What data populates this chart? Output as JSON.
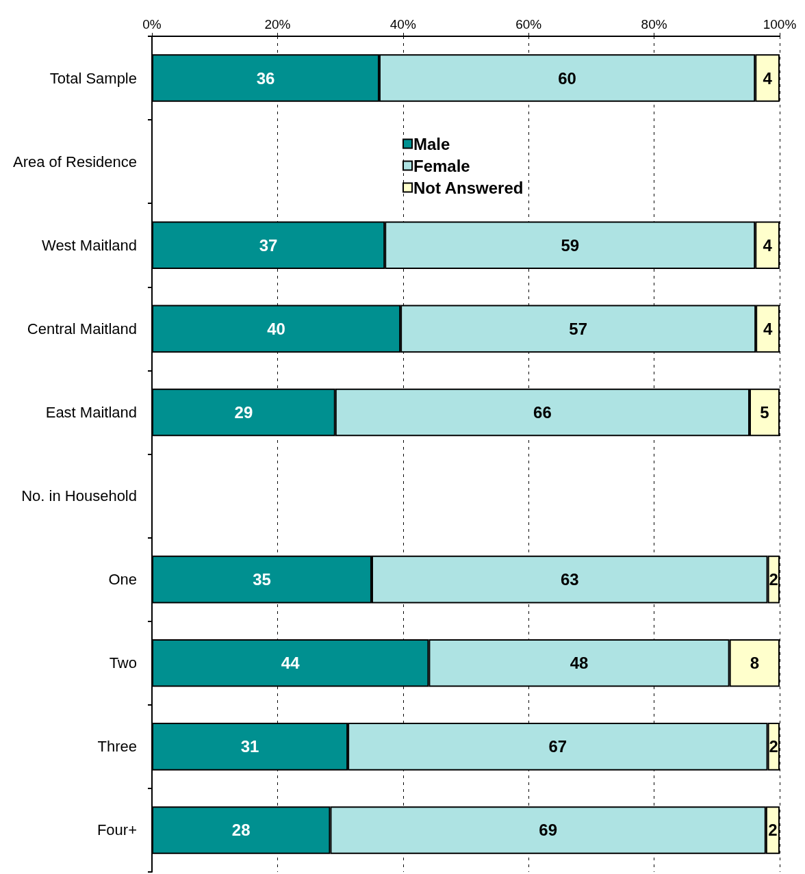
{
  "chart_data": {
    "type": "bar",
    "orientation": "horizontal",
    "stacked": true,
    "categories": [
      "Total Sample",
      "Area of Residence",
      "West Maitland",
      "Central Maitland",
      "East Maitland",
      "No. in Household",
      "One",
      "Two",
      "Three",
      "Four+"
    ],
    "series": [
      {
        "name": "Male",
        "color": "#009090",
        "values": [
          36.2,
          null,
          37.1,
          39.6,
          29.2,
          null,
          35.0,
          44.1,
          31.2,
          28.4
        ],
        "value_labels": [
          "36",
          null,
          "37",
          "40",
          "29",
          null,
          "35",
          "44",
          "31",
          "28"
        ]
      },
      {
        "name": "Female",
        "color": "#aee3e3",
        "values": [
          59.9,
          null,
          59.0,
          56.6,
          66.0,
          null,
          63.1,
          47.9,
          66.9,
          69.4
        ],
        "value_labels": [
          "60",
          null,
          "59",
          "57",
          "66",
          null,
          "63",
          "48",
          "67",
          "69"
        ]
      },
      {
        "name": "Not Answered",
        "color": "#ffffcc",
        "values": [
          3.9,
          null,
          3.9,
          3.8,
          4.8,
          null,
          1.9,
          8.0,
          1.9,
          2.2
        ],
        "value_labels": [
          "4",
          null,
          "4",
          "4",
          "5",
          null,
          "2",
          "8",
          "2",
          "2"
        ]
      }
    ],
    "xlim": [
      0,
      100
    ],
    "xticks": [
      {
        "value": 0,
        "label": "0%"
      },
      {
        "value": 20,
        "label": "20%"
      },
      {
        "value": 40,
        "label": "40%"
      },
      {
        "value": 60,
        "label": "60%"
      },
      {
        "value": 80,
        "label": "80%"
      },
      {
        "value": 100,
        "label": "100%"
      }
    ],
    "grid": "x",
    "legend": "top"
  }
}
